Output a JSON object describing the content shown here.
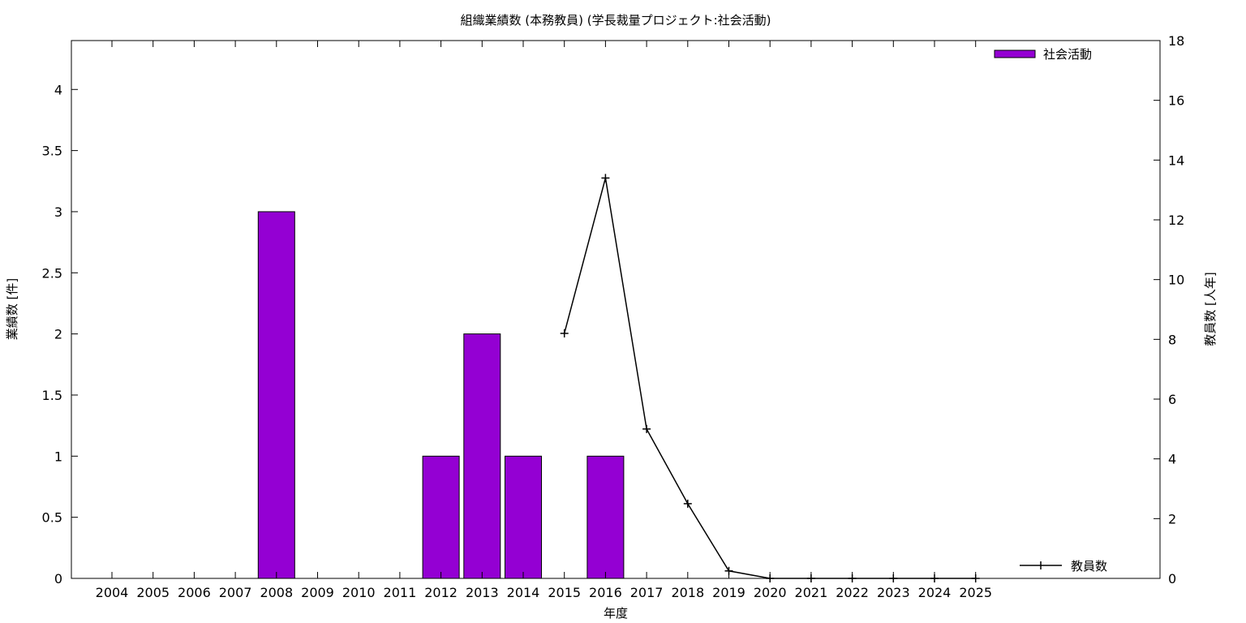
{
  "chart_data": {
    "type": "bar",
    "title": "組織業績数 (本務教員) (学長裁量プロジェクト:社会活動)",
    "xlabel": "年度",
    "ylabel": "業績数 [件]",
    "y2label": "教員数 [人年]",
    "categories": [
      "2004",
      "2005",
      "2006",
      "2007",
      "2008",
      "2009",
      "2010",
      "2011",
      "2012",
      "2013",
      "2014",
      "2015",
      "2016",
      "2017",
      "2018",
      "2019",
      "2020",
      "2021",
      "2022",
      "2023",
      "2024",
      "2025"
    ],
    "ylim": [
      0,
      4.4
    ],
    "y_ticks": [
      "0",
      "0.5",
      "1",
      "1.5",
      "2",
      "2.5",
      "3",
      "3.5",
      "4"
    ],
    "y2lim": [
      0,
      18
    ],
    "y2_ticks": [
      "0",
      "2",
      "4",
      "6",
      "8",
      "10",
      "12",
      "14",
      "16",
      "18"
    ],
    "grid": false,
    "series": [
      {
        "name": "社会活動",
        "type": "bar",
        "axis": "left",
        "color": "#9400d3",
        "values": [
          0,
          0,
          0,
          0,
          3,
          0,
          0,
          0,
          1,
          2,
          1,
          0,
          1,
          0,
          0,
          0,
          0,
          0,
          0,
          0,
          0,
          0
        ]
      },
      {
        "name": "教員数",
        "type": "line",
        "axis": "right",
        "color": "#000000",
        "values": [
          null,
          null,
          null,
          null,
          null,
          null,
          null,
          null,
          null,
          null,
          null,
          8.2,
          13.4,
          5.0,
          2.5,
          0.25,
          0.0,
          0.0,
          0.0,
          0.0,
          0.0,
          0.0
        ]
      }
    ],
    "legend": [
      {
        "label": "社会活動",
        "placement": "top-right"
      },
      {
        "label": "教員数",
        "placement": "bottom-right"
      }
    ]
  }
}
